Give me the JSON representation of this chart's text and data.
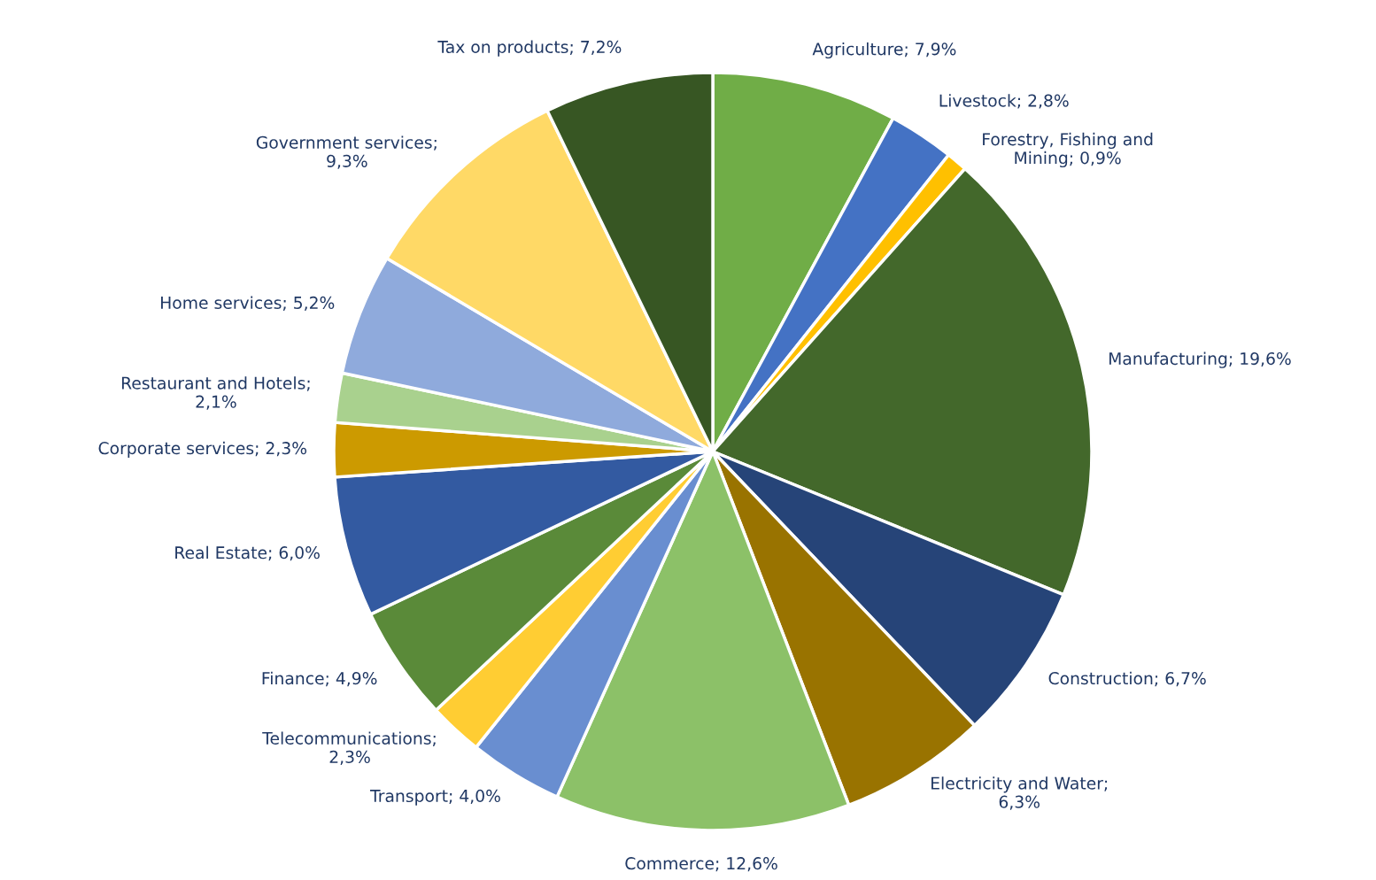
{
  "chart_data": {
    "type": "pie",
    "categories": [
      "Agriculture; 7,9%",
      "Livestock; 2,8%",
      "Forestry, Fishing and\nMining; 0,9%",
      "Manufacturing; 19,6%",
      "Construction; 6,7%",
      "Electricity and Water;\n6,3%",
      "Commerce; 12,6%",
      "Transport; 4,0%",
      "Telecommunications;\n2,3%",
      "Finance; 4,9%",
      "Real Estate; 6,0%",
      "Corporate services; 2,3%",
      "Restaurant and Hotels;\n2,1%",
      "Home services; 5,2%",
      "Government services;\n9,3%",
      "Tax on products; 7,2%"
    ],
    "values": [
      7.9,
      2.8,
      0.9,
      19.6,
      6.7,
      6.3,
      12.6,
      4.0,
      2.3,
      4.9,
      6.0,
      2.3,
      2.1,
      5.2,
      9.3,
      7.2
    ],
    "colors": [
      "#70ad47",
      "#4472c4",
      "#ffc000",
      "#43682b",
      "#264478",
      "#997300",
      "#8cc168",
      "#698ed0",
      "#ffcd33",
      "#5a8a39",
      "#335aa1",
      "#cc9a00",
      "#a9d18e",
      "#8faadc",
      "#ffd966",
      "#375623"
    ]
  }
}
